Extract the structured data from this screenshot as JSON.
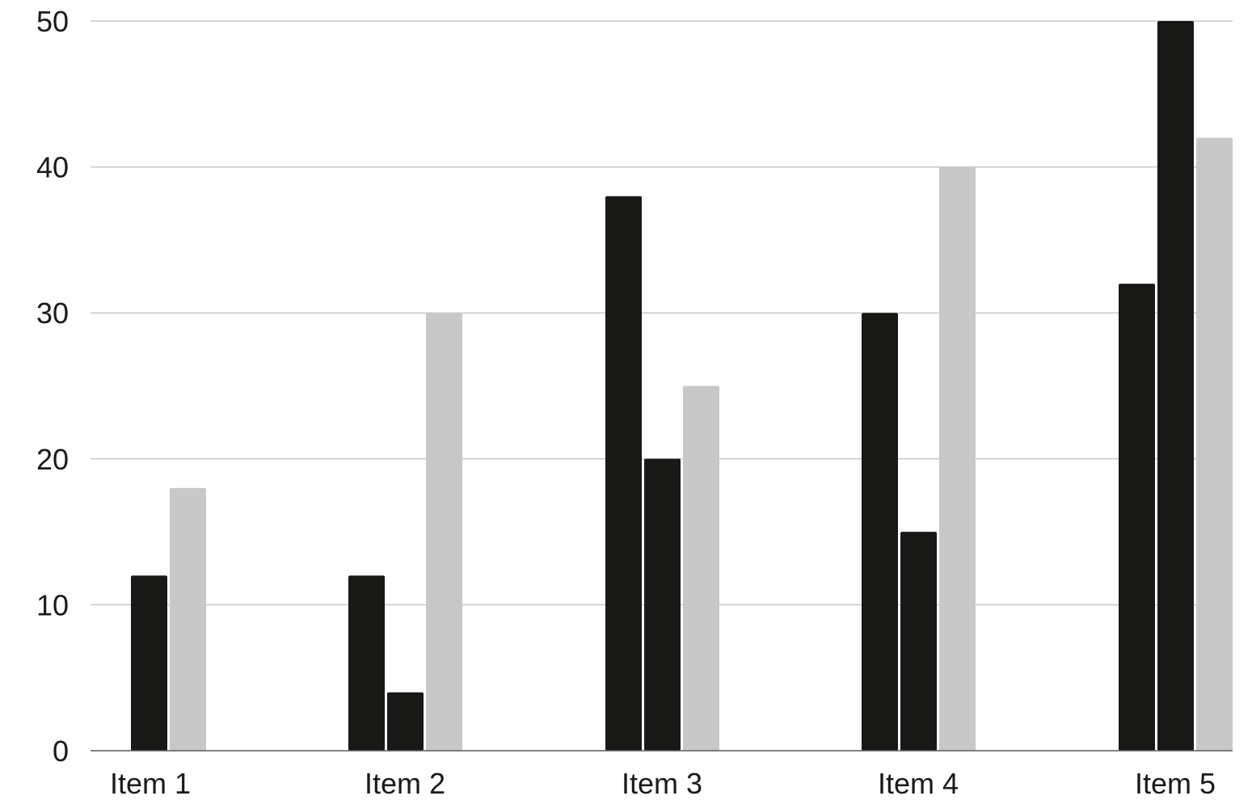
{
  "chart_data": {
    "type": "bar",
    "title": "",
    "xlabel": "",
    "ylabel": "",
    "categories": [
      "Item 1",
      "Item 2",
      "Item 3",
      "Item 4",
      "Item 5"
    ],
    "series": [
      {
        "color": "#181816",
        "values": [
          12,
          12,
          38,
          30,
          32
        ]
      },
      {
        "color": "#181816",
        "values": [
          null,
          4,
          20,
          15,
          50
        ]
      },
      {
        "color": "#c8c8c8",
        "values": [
          18,
          30,
          25,
          40,
          42
        ]
      }
    ],
    "ylim": [
      0,
      50
    ],
    "yticks": [
      0,
      10,
      20,
      30,
      40,
      50
    ],
    "grid": true,
    "legend": "none"
  }
}
